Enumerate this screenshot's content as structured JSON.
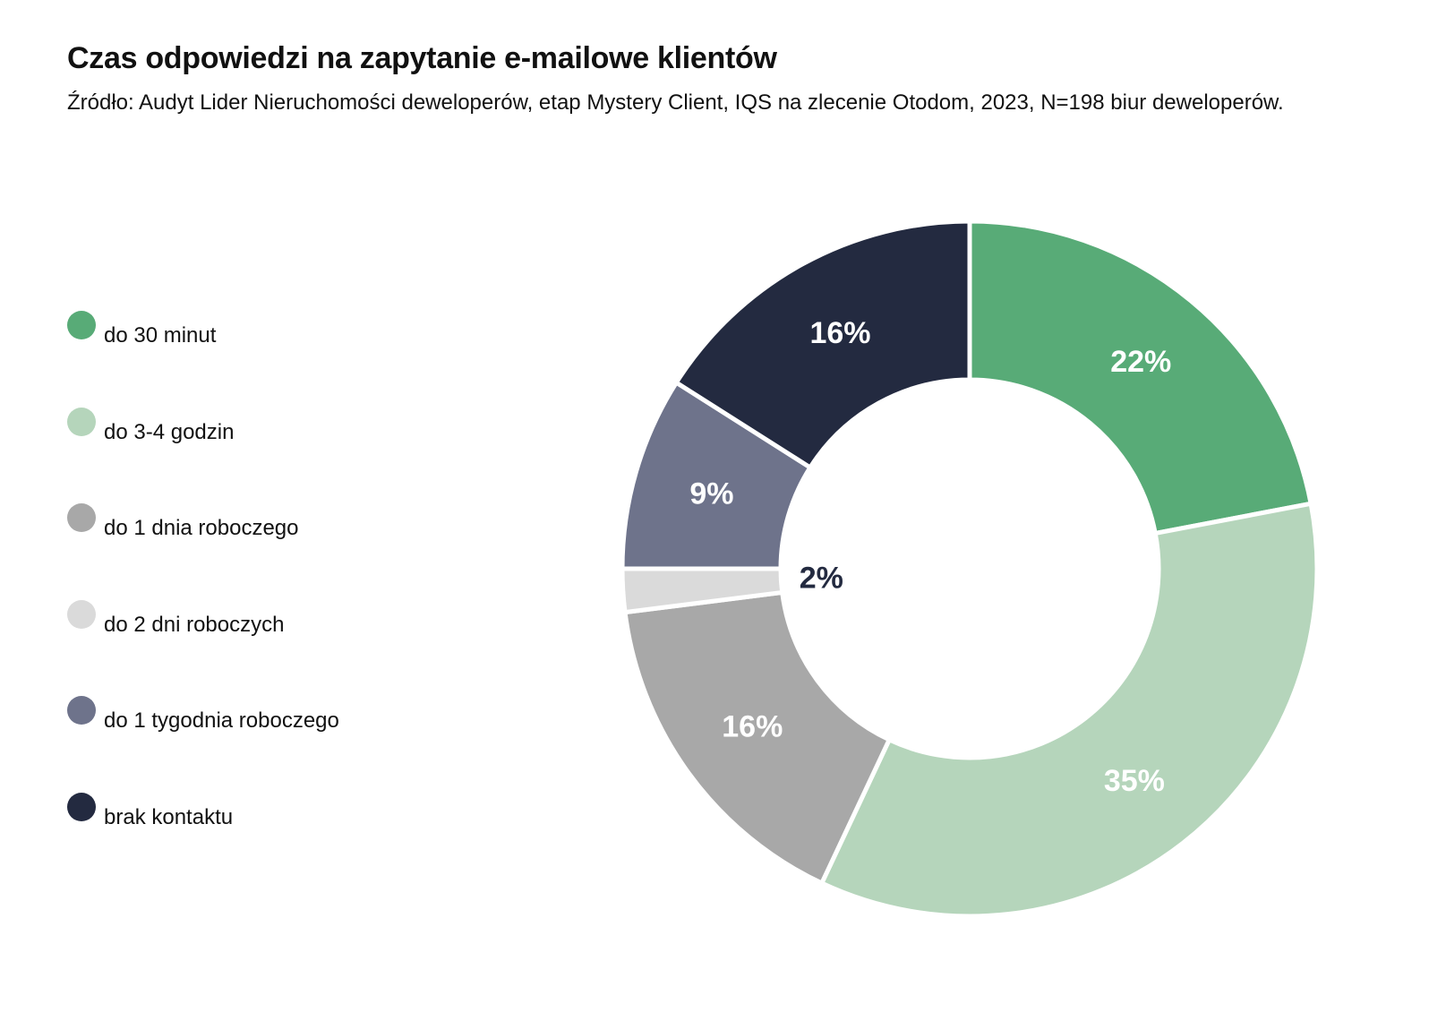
{
  "chart_data": {
    "type": "pie",
    "donut": true,
    "title": "Czas odpowiedzi na zapytanie e-mailowe klientów",
    "subtitle": "Źródło: Audyt Lider Nieruchomości deweloperów, etap Mystery Client, IQS na zlecenie Otodom, 2023, N=198 biur deweloperów.",
    "legend_position": "left",
    "categories": [
      "do 30 minut",
      "do 3-4 godzin",
      "do 1 dnia roboczego",
      "do 2 dni roboczych",
      "do 1 tygodnia roboczego",
      "brak kontaktu"
    ],
    "values": [
      22,
      35,
      16,
      2,
      9,
      16
    ],
    "labels": [
      "22%",
      "35%",
      "16%",
      "2%",
      "9%",
      "16%"
    ],
    "colors": [
      "#58ab77",
      "#b5d5bb",
      "#a8a8a8",
      "#dadada",
      "#6e738b",
      "#232a40"
    ],
    "label_colors": [
      "#ffffff",
      "#ffffff",
      "#ffffff",
      "#232a40",
      "#ffffff",
      "#ffffff"
    ]
  }
}
